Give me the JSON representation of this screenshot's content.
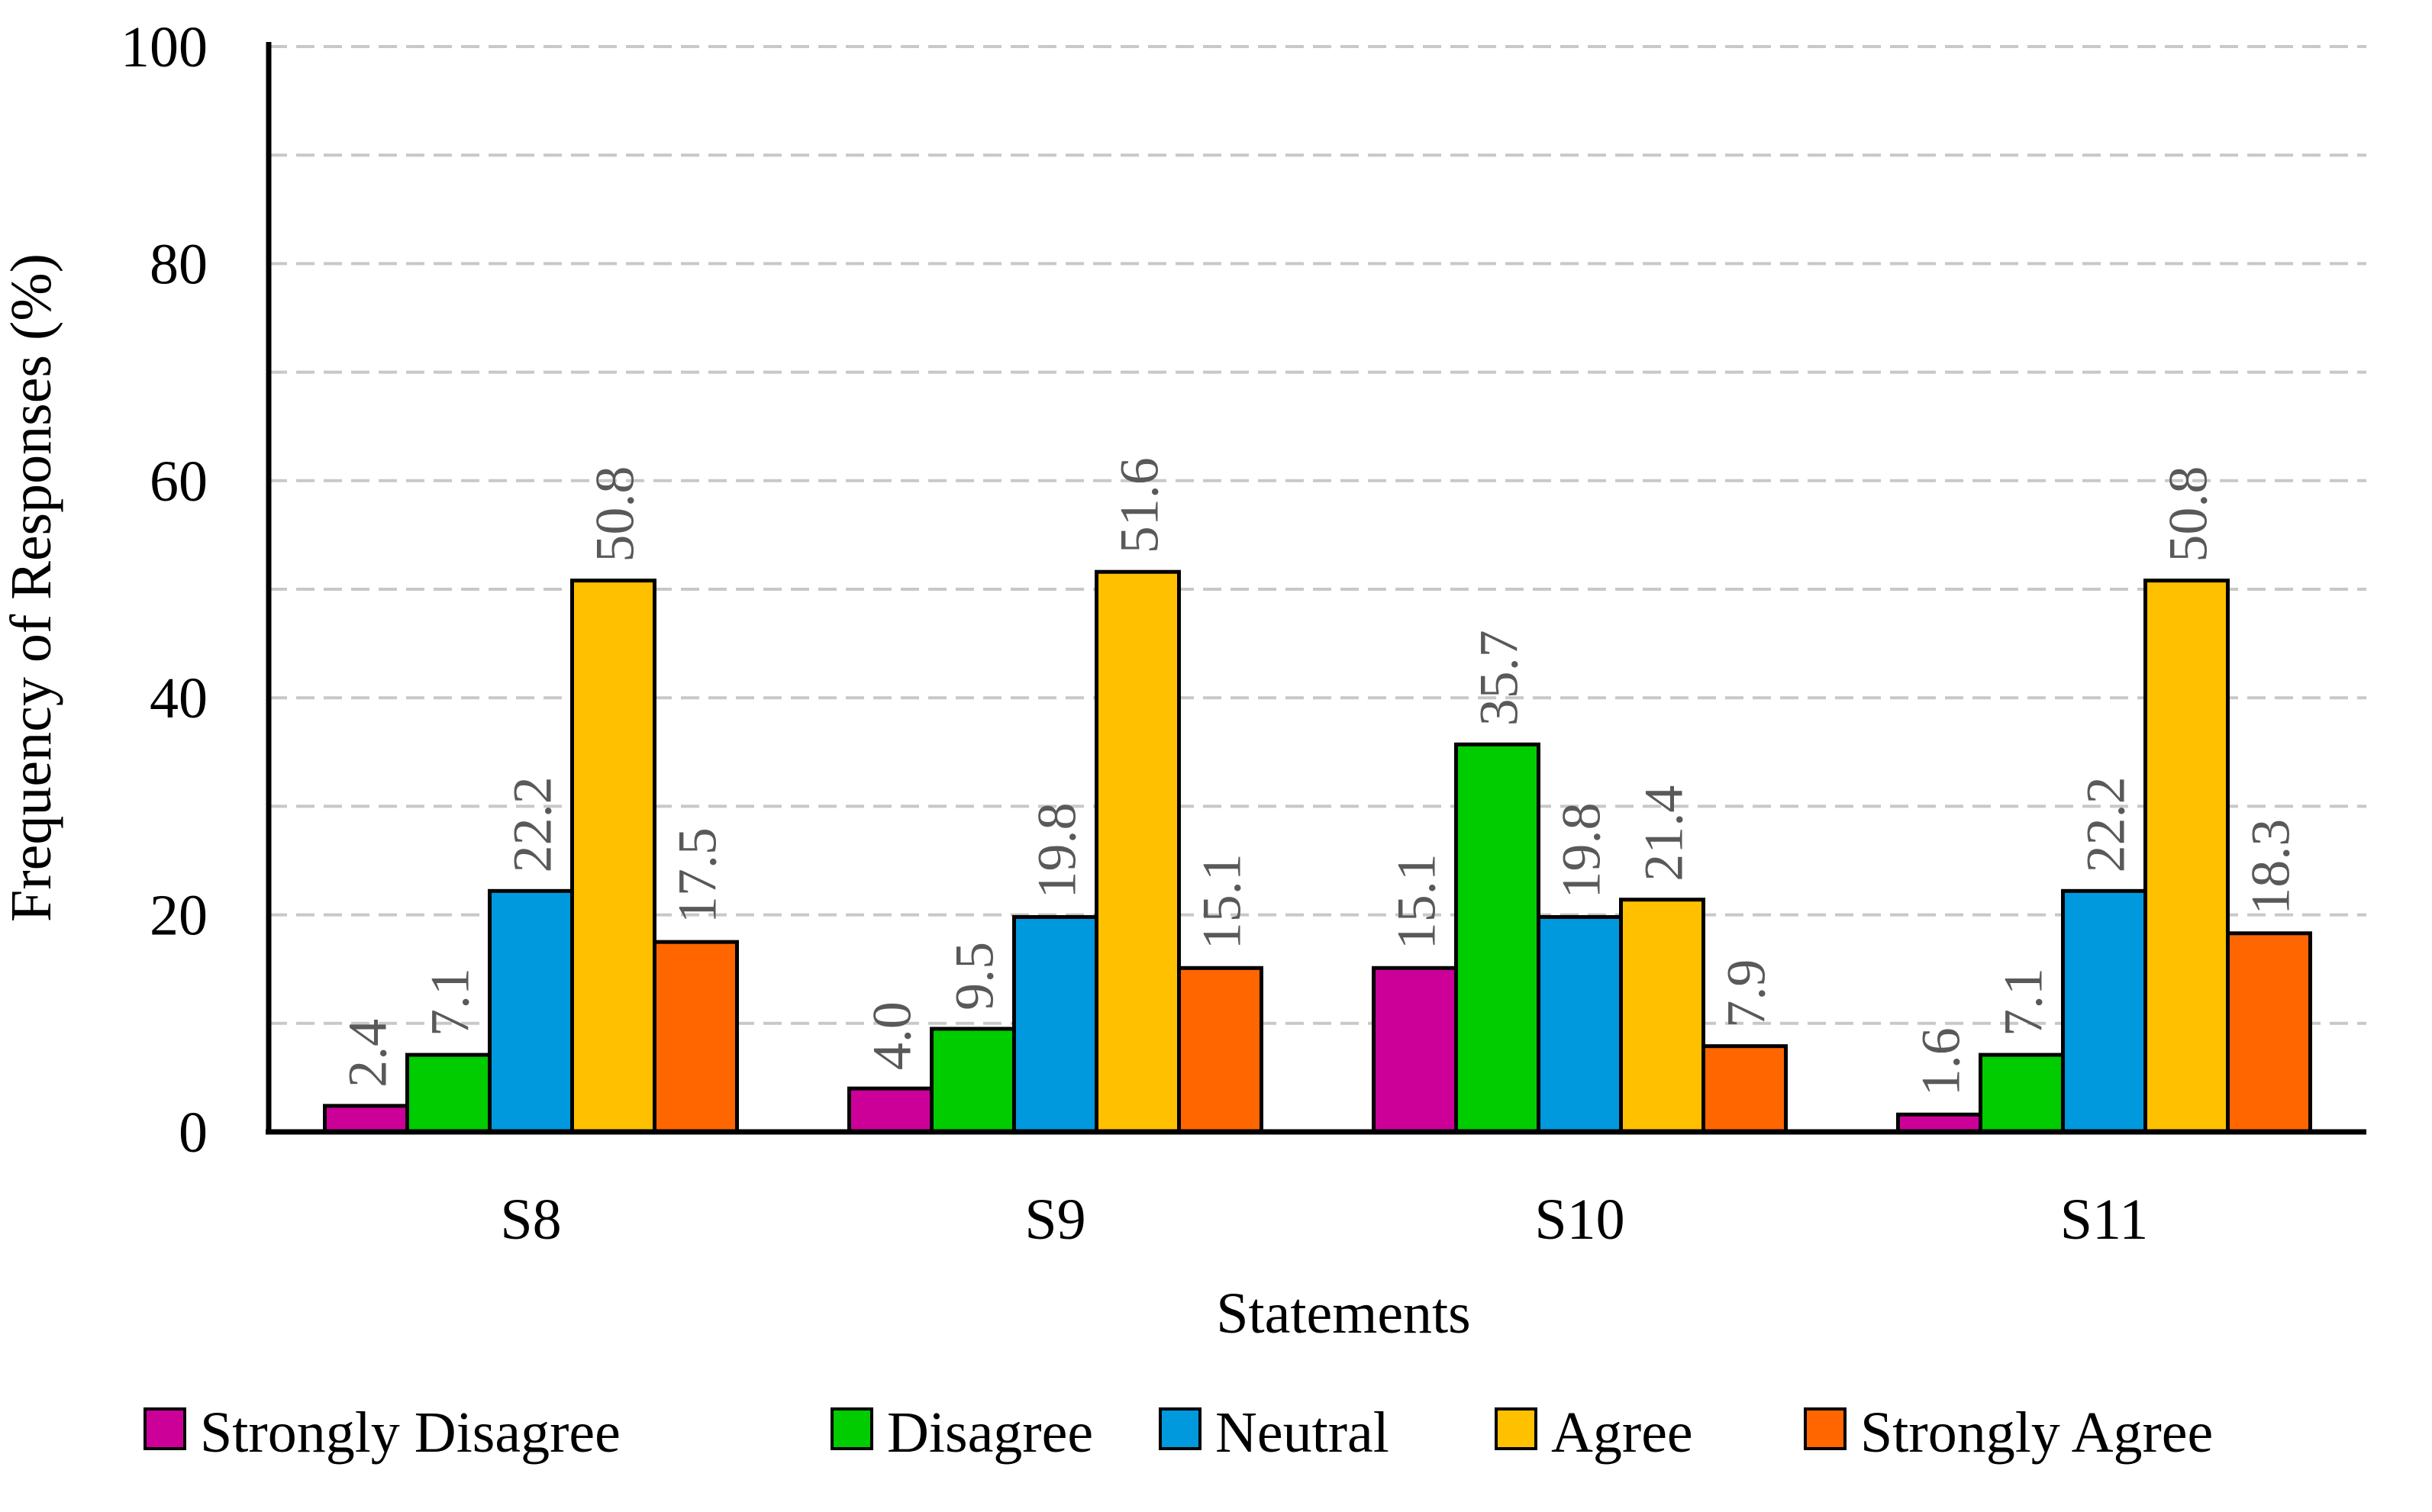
{
  "chart_data": {
    "type": "bar",
    "title": "",
    "xlabel": "Statements",
    "ylabel": "Frequency of Responses (%)",
    "ylim": [
      0,
      100
    ],
    "yticks": [
      0,
      20,
      40,
      60,
      80,
      100
    ],
    "grid": true,
    "legend": "bottom",
    "categories": [
      "S8",
      "S9",
      "S10",
      "S11"
    ],
    "series": [
      {
        "name": "Strongly Disagree",
        "color": "#CC0099",
        "values": [
          2.4,
          4.0,
          15.1,
          1.6
        ],
        "labels": [
          "2.4",
          "4.0",
          "15.1",
          "1.6"
        ]
      },
      {
        "name": "Disagree",
        "color": "#00CC00",
        "values": [
          7.1,
          9.5,
          35.7,
          7.1
        ],
        "labels": [
          "7.1",
          "9.5",
          "35.7",
          "7.1"
        ]
      },
      {
        "name": "Neutral",
        "color": "#0099DD",
        "values": [
          22.2,
          19.8,
          19.8,
          22.2
        ],
        "labels": [
          "22.2",
          "19.8",
          "19.8",
          "22.2"
        ]
      },
      {
        "name": "Agree",
        "color": "#FFC000",
        "values": [
          50.8,
          51.6,
          21.4,
          50.8
        ],
        "labels": [
          "50.8",
          "51.6",
          "21.4",
          "50.8"
        ]
      },
      {
        "name": "Strongly Agree",
        "color": "#FF6600",
        "values": [
          17.5,
          15.1,
          7.9,
          18.3
        ],
        "labels": [
          "17.5",
          "15.1",
          "7.9",
          "18.3"
        ]
      }
    ]
  }
}
